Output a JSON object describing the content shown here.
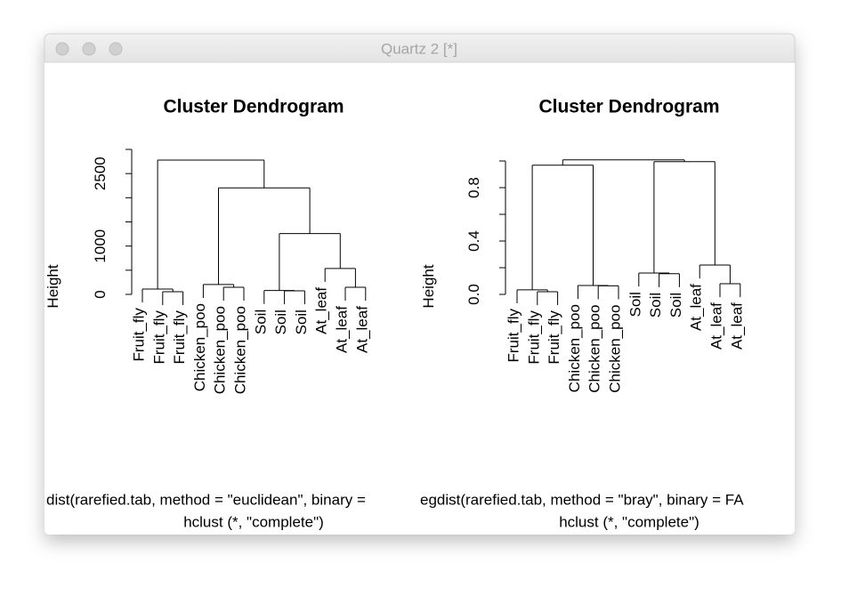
{
  "window_title": "Quartz 2 [*]",
  "chart_data": [
    {
      "type": "dendrogram",
      "title": "Cluster Dendrogram",
      "ylabel": "Height",
      "sub": [
        "dist(rarefied.tab, method = \"euclidean\", binary =",
        "hclust (*, \"complete\")"
      ],
      "ylim": [
        0,
        3000
      ],
      "yticks": [
        0,
        1000,
        2500
      ],
      "yminor": [
        500,
        1500,
        2000,
        3000
      ],
      "tree": {
        "height": 2778,
        "children": [
          {
            "height": 111,
            "children": [
              {
                "label": "Fruit_fly"
              },
              {
                "height": 56,
                "children": [
                  {
                    "label": "Fruit_fly"
                  },
                  {
                    "label": "Fruit_fly"
                  }
                ]
              }
            ]
          },
          {
            "height": 2204,
            "children": [
              {
                "height": 204,
                "children": [
                  {
                    "label": "Chicken_poo"
                  },
                  {
                    "height": 148,
                    "children": [
                      {
                        "label": "Chicken_poo"
                      },
                      {
                        "label": "Chicken_poo"
                      }
                    ]
                  }
                ]
              },
              {
                "height": 1259,
                "children": [
                  {
                    "height": 80,
                    "children": [
                      {
                        "label": "Soil"
                      },
                      {
                        "height": 74,
                        "children": [
                          {
                            "label": "Soil"
                          },
                          {
                            "label": "Soil"
                          }
                        ]
                      }
                    ]
                  },
                  {
                    "height": 537,
                    "children": [
                      {
                        "label": "At_leaf"
                      },
                      {
                        "height": 148,
                        "children": [
                          {
                            "label": "At_leaf"
                          },
                          {
                            "label": "At_leaf"
                          }
                        ]
                      }
                    ]
                  }
                ]
              }
            ]
          }
        ]
      }
    },
    {
      "type": "dendrogram",
      "title": "Cluster Dendrogram",
      "ylabel": "Height",
      "sub": [
        "egdist(rarefied.tab, method = \"bray\", binary = FA",
        "hclust (*, \"complete\")"
      ],
      "ylim": [
        0,
        1.0
      ],
      "yticks": [
        {
          "value": 0,
          "label": "0.0"
        },
        0.4,
        0.8
      ],
      "yminor": [
        0.2,
        0.6,
        1.0
      ],
      "tree": {
        "height": 1.008,
        "children": [
          {
            "height": 0.968,
            "children": [
              {
                "height": 0.034,
                "children": [
                  {
                    "label": "Fruit_fly"
                  },
                  {
                    "height": 0.02,
                    "children": [
                      {
                        "label": "Fruit_fly"
                      },
                      {
                        "label": "Fruit_fly"
                      }
                    ]
                  }
                ]
              },
              {
                "height": 0.067,
                "children": [
                  {
                    "label": "Chicken_poo"
                  },
                  {
                    "height": 0.064,
                    "children": [
                      {
                        "label": "Chicken_poo"
                      },
                      {
                        "label": "Chicken_poo"
                      }
                    ]
                  }
                ]
              }
            ]
          },
          {
            "height": 0.995,
            "children": [
              {
                "height": 0.16,
                "children": [
                  {
                    "label": "Soil"
                  },
                  {
                    "height": 0.155,
                    "children": [
                      {
                        "label": "Soil"
                      },
                      {
                        "label": "Soil"
                      }
                    ]
                  }
                ]
              },
              {
                "height": 0.22,
                "children": [
                  {
                    "label": "At_leaf"
                  },
                  {
                    "height": 0.08,
                    "children": [
                      {
                        "label": "At_leaf"
                      },
                      {
                        "label": "At_leaf"
                      }
                    ]
                  }
                ]
              }
            ]
          }
        ]
      }
    }
  ]
}
